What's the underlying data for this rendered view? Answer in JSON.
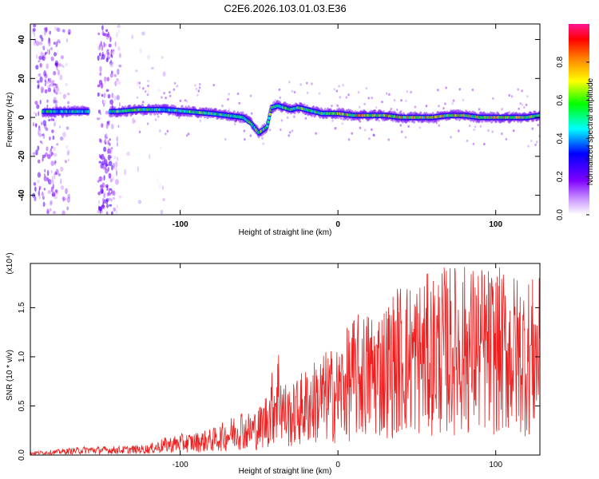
{
  "figure_title": "C2E6.2026.103.01.03.E36",
  "chart_data": [
    {
      "type": "heatmap",
      "title": "",
      "xlabel": "Height of straight line (km)",
      "ylabel": "Frequency (Hz)",
      "xlim": [
        -195,
        128
      ],
      "ylim": [
        -50,
        48
      ],
      "x_ticks": [
        -100,
        0,
        100
      ],
      "y_ticks": [
        -40,
        -20,
        0,
        20,
        40
      ],
      "colorbar": {
        "label": "Normalized spectral amplitude",
        "range": [
          0,
          1
        ],
        "ticks": [
          0.0,
          0.2,
          0.4,
          0.6,
          0.8
        ],
        "tick_labels": [
          "0.0",
          "0.2",
          "0.4",
          "0.6",
          "0.8"
        ],
        "colormap": [
          "#ffffff",
          "#cc99ff",
          "#7f00ff",
          "#0000ff",
          "#00ffff",
          "#00ff00",
          "#ffff00",
          "#ff8000",
          "#ff0000",
          "#ff1493"
        ]
      },
      "ridge": {
        "x": [
          -185,
          -170,
          -160,
          -150,
          -140,
          -125,
          -110,
          -95,
          -80,
          -70,
          -60,
          -55,
          -50,
          -45,
          -42,
          -38,
          -34,
          -30,
          -25,
          -20,
          -10,
          0,
          10,
          20,
          30,
          40,
          50,
          60,
          70,
          80,
          90,
          100,
          110,
          120,
          128
        ],
        "y": [
          3,
          3,
          3,
          3,
          3,
          4,
          4,
          3,
          2,
          1,
          0,
          -3,
          -8,
          -5,
          5,
          6,
          5,
          4,
          5,
          4,
          2,
          2,
          1,
          1,
          1,
          0,
          0,
          0,
          1,
          1,
          0,
          0,
          0,
          0,
          1
        ]
      }
    },
    {
      "type": "line",
      "title": "",
      "xlabel": "Height of straight line (km)",
      "ylabel": "SNR (10 * v/v)",
      "y_multiplier": "(x10⁴)",
      "xlim": [
        -195,
        128
      ],
      "ylim": [
        0,
        1.95
      ],
      "x_ticks": [
        -100,
        0,
        100
      ],
      "y_ticks": [
        0.0,
        0.5,
        1.0,
        1.5
      ],
      "y_tick_labels": [
        "0.0",
        "0.5",
        "1.0",
        "1.5"
      ],
      "color": "#ee2020",
      "series": [
        {
          "x": [
            -195,
            -180,
            -160,
            -140,
            -120,
            -110,
            -100,
            -90,
            -80,
            -70,
            -60,
            -50,
            -45,
            -40,
            -37,
            -35,
            -30,
            -25,
            -20,
            -10,
            0,
            10,
            20,
            30,
            40,
            50,
            60,
            70,
            80,
            90,
            100,
            110,
            120,
            128
          ],
          "y": [
            0.02,
            0.03,
            0.05,
            0.05,
            0.06,
            0.1,
            0.12,
            0.13,
            0.15,
            0.2,
            0.28,
            0.33,
            0.45,
            0.65,
            0.8,
            0.55,
            0.45,
            0.55,
            0.6,
            0.7,
            0.75,
            0.95,
            1.0,
            1.05,
            1.2,
            1.2,
            1.25,
            1.3,
            1.3,
            1.3,
            1.28,
            1.25,
            1.22,
            1.2
          ]
        }
      ]
    }
  ]
}
